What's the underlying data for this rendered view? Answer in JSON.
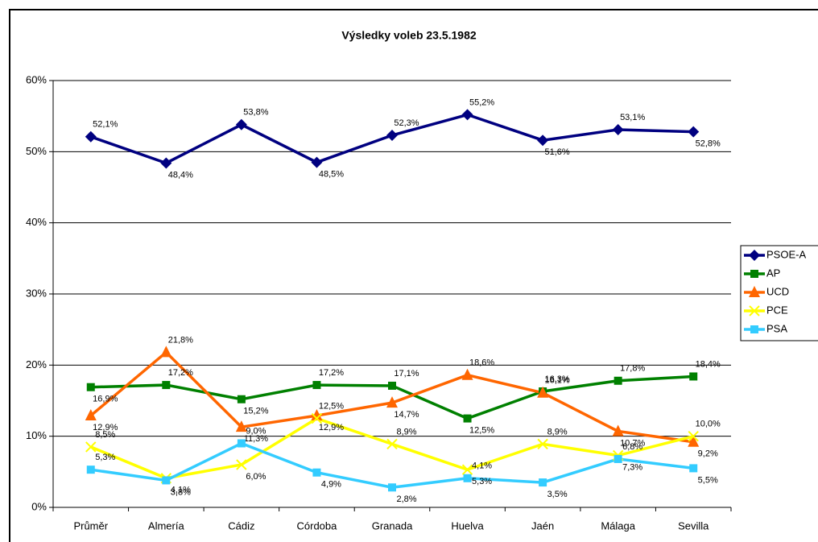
{
  "chart_data": {
    "type": "line",
    "title": "Výsledky voleb 23.5.1982",
    "categories": [
      "Průměr",
      "Almería",
      "Cádiz",
      "Córdoba",
      "Granada",
      "Huelva",
      "Jaén",
      "Málaga",
      "Sevilla"
    ],
    "series": [
      {
        "name": "PSOE-A",
        "color": "#000080",
        "marker": "diamond",
        "values": [
          52.1,
          48.4,
          53.8,
          48.5,
          52.3,
          55.2,
          51.6,
          53.1,
          52.8
        ],
        "value_labels": [
          "52,1%",
          "48,4%",
          "53,8%",
          "48,5%",
          "52,3%",
          "55,2%",
          "51,6%",
          "53,1%",
          "52,8%"
        ]
      },
      {
        "name": "AP",
        "color": "#008000",
        "marker": "square",
        "values": [
          16.9,
          17.2,
          15.2,
          17.2,
          17.1,
          12.5,
          16.3,
          17.8,
          18.4
        ],
        "value_labels": [
          "16,9%",
          "17,2%",
          "15,2%",
          "17,2%",
          "17,1%",
          "12,5%",
          "16,3%",
          "17,8%",
          "18,4%"
        ]
      },
      {
        "name": "UCD",
        "color": "#FF6600",
        "marker": "triangle",
        "values": [
          12.9,
          21.8,
          11.3,
          12.9,
          14.7,
          18.6,
          16.1,
          10.7,
          9.2
        ],
        "value_labels": [
          "12,9%",
          "21,8%",
          "11,3%",
          "12,9%",
          "14,7%",
          "18,6%",
          "16,1%",
          "10,7%",
          "9,2%"
        ]
      },
      {
        "name": "PCE",
        "color": "#FFFF00",
        "marker": "x",
        "values": [
          8.5,
          4.1,
          6.0,
          12.5,
          8.9,
          5.3,
          8.9,
          7.3,
          10.0
        ],
        "value_labels": [
          "8,5%",
          "4,1%",
          "6,0%",
          "12,5%",
          "8,9%",
          "5,3%",
          "8,9%",
          "7,3%",
          "10,0%"
        ]
      },
      {
        "name": "PSA",
        "color": "#33CCFF",
        "marker": "square",
        "values": [
          5.3,
          3.8,
          9.0,
          4.9,
          2.8,
          4.1,
          3.5,
          6.8,
          5.5
        ],
        "value_labels": [
          "5,3%",
          "3,8%",
          "9,0%",
          "4,9%",
          "2,8%",
          "4,1%",
          "3,5%",
          "6,8%",
          "5,5%"
        ]
      }
    ],
    "ylim": [
      0,
      60
    ],
    "yticks": [
      {
        "value": 0,
        "label": "0%"
      },
      {
        "value": 10,
        "label": "10%"
      },
      {
        "value": 20,
        "label": "20%"
      },
      {
        "value": 30,
        "label": "30%"
      },
      {
        "value": 40,
        "label": "40%"
      },
      {
        "value": 50,
        "label": "50%"
      },
      {
        "value": 60,
        "label": "60%"
      }
    ],
    "grid": true,
    "legend": "right"
  }
}
